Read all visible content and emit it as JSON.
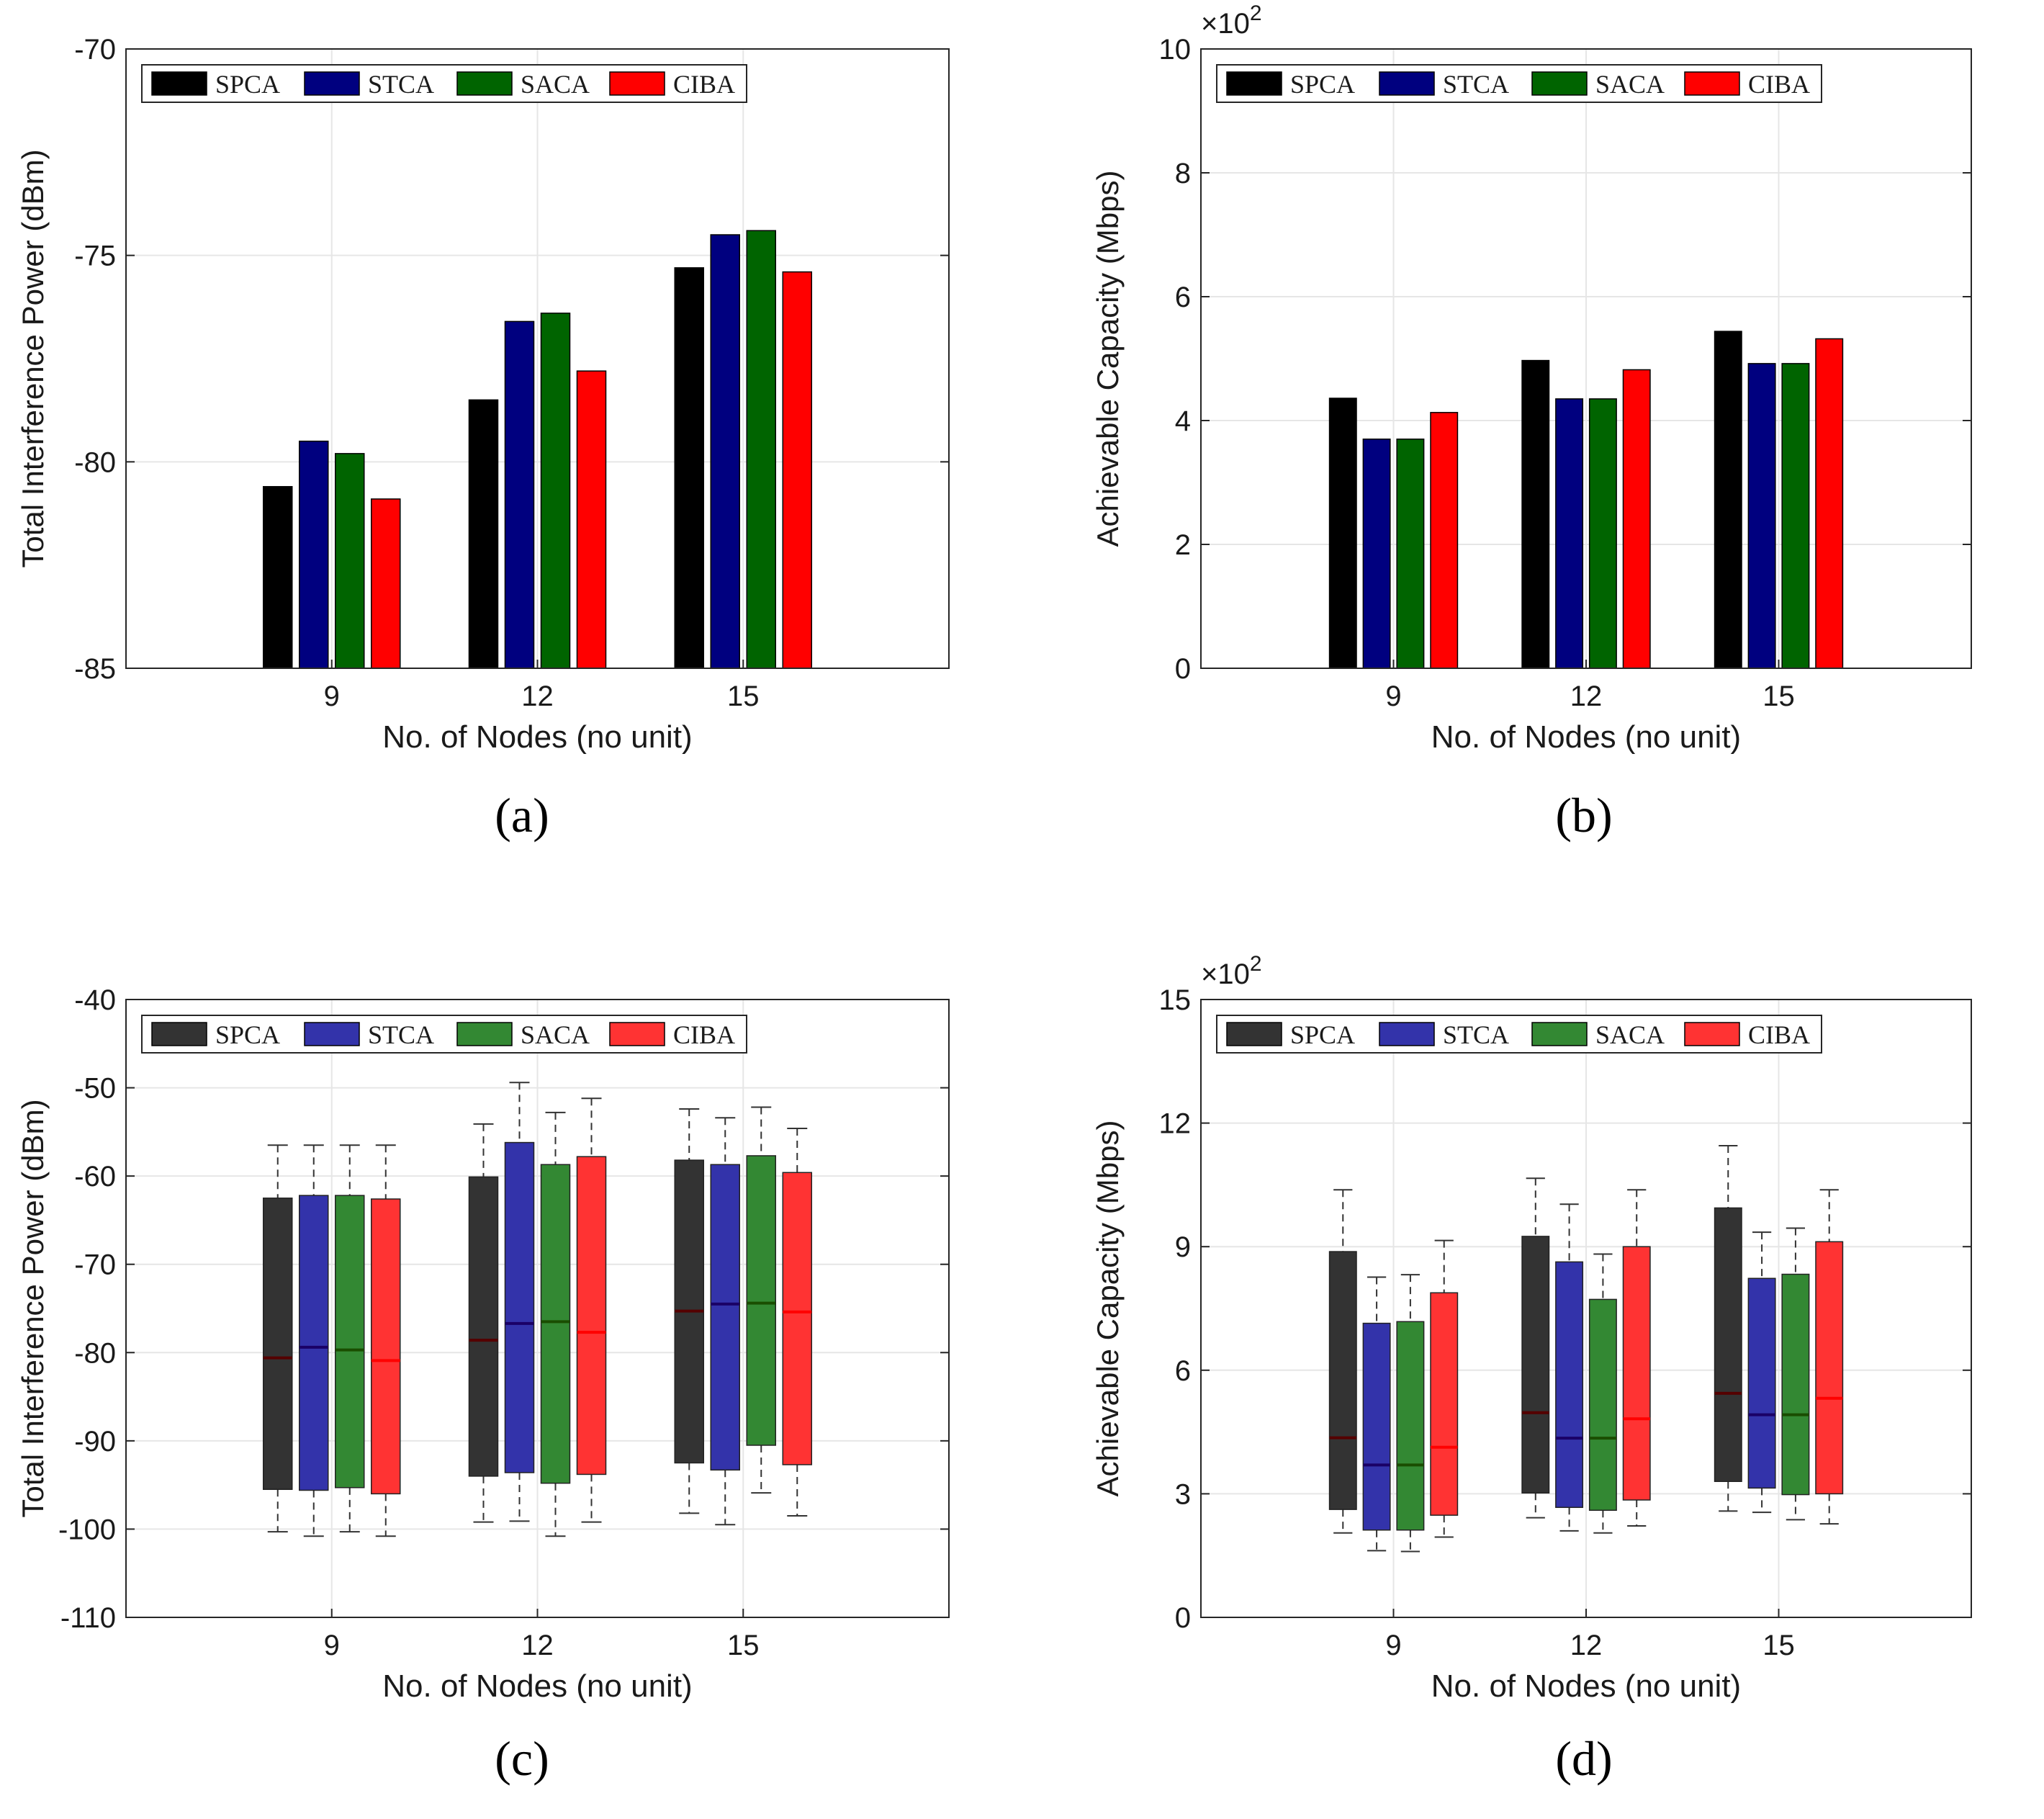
{
  "colors": {
    "SPCA": "#000000",
    "STCA": "#00007f",
    "SACA": "#006400",
    "CIBA": "#ff0000",
    "box_SPCA": "#333333",
    "box_STCA": "#3333aa",
    "box_SACA": "#338833",
    "box_CIBA": "#ff3333",
    "grid": "#e6e6e6",
    "axis": "#262626"
  },
  "chart_data": [
    {
      "id": "a",
      "type": "bar",
      "caption": "(a)",
      "categories": [
        "9",
        "12",
        "15"
      ],
      "series": [
        {
          "name": "SPCA",
          "values": [
            -80.6,
            -78.5,
            -75.3
          ]
        },
        {
          "name": "STCA",
          "values": [
            -79.5,
            -76.6,
            -74.5
          ]
        },
        {
          "name": "SACA",
          "values": [
            -79.8,
            -76.4,
            -74.4
          ]
        },
        {
          "name": "CIBA",
          "values": [
            -80.9,
            -77.8,
            -75.4
          ]
        }
      ],
      "xlabel": "No. of Nodes (no unit)",
      "ylabel": "Total Interference Power (dBm)",
      "ylim": [
        -85,
        -70
      ],
      "yticks": [
        -85,
        -80,
        -75,
        -70
      ],
      "ytick_labels": [
        "-85",
        "-80",
        "-75",
        "-70"
      ],
      "exponent_label": "",
      "grid": true,
      "legend": "top-left"
    },
    {
      "id": "b",
      "type": "bar",
      "caption": "(b)",
      "categories": [
        "9",
        "12",
        "15"
      ],
      "series": [
        {
          "name": "SPCA",
          "values": [
            436,
            497,
            544
          ]
        },
        {
          "name": "STCA",
          "values": [
            370,
            435,
            492
          ]
        },
        {
          "name": "SACA",
          "values": [
            370,
            435,
            492
          ]
        },
        {
          "name": "CIBA",
          "values": [
            413,
            482,
            532
          ]
        }
      ],
      "xlabel": "No. of Nodes (no unit)",
      "ylabel": "Achievable Capacity (Mbps)",
      "ylim": [
        0,
        1000
      ],
      "yticks": [
        0,
        200,
        400,
        600,
        800,
        1000
      ],
      "ytick_labels": [
        "0",
        "2",
        "4",
        "6",
        "8",
        "10"
      ],
      "exponent_label": "×10",
      "exponent_power": "2",
      "grid": true,
      "legend": "top-left"
    },
    {
      "id": "c",
      "type": "box",
      "caption": "(c)",
      "categories": [
        "9",
        "12",
        "15"
      ],
      "series": [
        {
          "name": "SPCA",
          "boxes": [
            {
              "min": -100.3,
              "q1": -95.5,
              "median": -80.6,
              "q3": -62.5,
              "max": -56.5
            },
            {
              "min": -99.2,
              "q1": -94.0,
              "median": -78.6,
              "q3": -60.1,
              "max": -54.1
            },
            {
              "min": -98.2,
              "q1": -92.5,
              "median": -75.3,
              "q3": -58.2,
              "max": -52.4
            }
          ]
        },
        {
          "name": "STCA",
          "boxes": [
            {
              "min": -100.8,
              "q1": -95.6,
              "median": -79.4,
              "q3": -62.2,
              "max": -56.5
            },
            {
              "min": -99.1,
              "q1": -93.6,
              "median": -76.7,
              "q3": -56.2,
              "max": -49.4
            },
            {
              "min": -99.5,
              "q1": -93.3,
              "median": -74.5,
              "q3": -58.7,
              "max": -53.4
            }
          ]
        },
        {
          "name": "SACA",
          "boxes": [
            {
              "min": -100.3,
              "q1": -95.3,
              "median": -79.7,
              "q3": -62.2,
              "max": -56.5
            },
            {
              "min": -100.8,
              "q1": -94.8,
              "median": -76.5,
              "q3": -58.7,
              "max": -52.8
            },
            {
              "min": -95.9,
              "q1": -90.5,
              "median": -74.4,
              "q3": -57.7,
              "max": -52.2
            }
          ]
        },
        {
          "name": "CIBA",
          "boxes": [
            {
              "min": -100.8,
              "q1": -96.0,
              "median": -80.9,
              "q3": -62.6,
              "max": -56.5
            },
            {
              "min": -99.2,
              "q1": -93.8,
              "median": -77.7,
              "q3": -57.8,
              "max": -51.2
            },
            {
              "min": -98.5,
              "q1": -92.7,
              "median": -75.4,
              "q3": -59.6,
              "max": -54.6
            }
          ]
        }
      ],
      "xlabel": "No. of Nodes (no unit)",
      "ylabel": "Total Interference Power (dBm)",
      "ylim": [
        -110,
        -40
      ],
      "yticks": [
        -110,
        -100,
        -90,
        -80,
        -70,
        -60,
        -50,
        -40
      ],
      "ytick_labels": [
        "-110",
        "-100",
        "-90",
        "-80",
        "-70",
        "-60",
        "-50",
        "-40"
      ],
      "exponent_label": "",
      "grid": true,
      "legend": "top-left"
    },
    {
      "id": "d",
      "type": "box",
      "caption": "(d)",
      "categories": [
        "9",
        "12",
        "15"
      ],
      "series": [
        {
          "name": "SPCA",
          "boxes": [
            {
              "min": 205,
              "q1": 262,
              "median": 436,
              "q3": 888,
              "max": 1038
            },
            {
              "min": 242,
              "q1": 302,
              "median": 497,
              "q3": 925,
              "max": 1066
            },
            {
              "min": 258,
              "q1": 330,
              "median": 544,
              "q3": 994,
              "max": 1145
            }
          ]
        },
        {
          "name": "STCA",
          "boxes": [
            {
              "min": 162,
              "q1": 212,
              "median": 370,
              "q3": 714,
              "max": 826
            },
            {
              "min": 210,
              "q1": 267,
              "median": 435,
              "q3": 863,
              "max": 1003
            },
            {
              "min": 255,
              "q1": 314,
              "median": 492,
              "q3": 823,
              "max": 935
            }
          ]
        },
        {
          "name": "SACA",
          "boxes": [
            {
              "min": 160,
              "q1": 212,
              "median": 370,
              "q3": 718,
              "max": 832
            },
            {
              "min": 205,
              "q1": 260,
              "median": 435,
              "q3": 772,
              "max": 882
            },
            {
              "min": 237,
              "q1": 298,
              "median": 492,
              "q3": 833,
              "max": 945
            }
          ]
        },
        {
          "name": "CIBA",
          "boxes": [
            {
              "min": 195,
              "q1": 248,
              "median": 413,
              "q3": 788,
              "max": 915
            },
            {
              "min": 222,
              "q1": 285,
              "median": 482,
              "q3": 900,
              "max": 1038
            },
            {
              "min": 227,
              "q1": 300,
              "median": 532,
              "q3": 912,
              "max": 1038
            }
          ]
        }
      ],
      "xlabel": "No. of Nodes (no unit)",
      "ylabel": "Achievable Capacity (Mbps)",
      "ylim": [
        0,
        1500
      ],
      "yticks": [
        0,
        300,
        600,
        900,
        1200,
        1500
      ],
      "ytick_labels": [
        "0",
        "3",
        "6",
        "9",
        "12",
        "15"
      ],
      "exponent_label": "×10",
      "exponent_power": "2",
      "grid": true,
      "legend": "top-left"
    }
  ]
}
